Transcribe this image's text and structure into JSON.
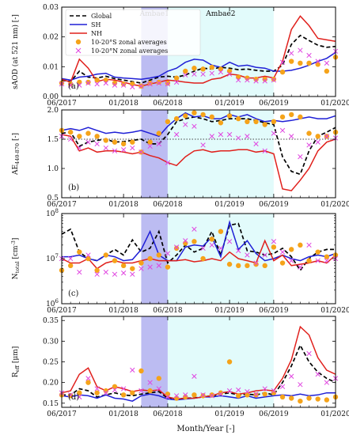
{
  "chart_data": {
    "type": "line",
    "xlabel": "Month/Year [-]",
    "x_tick_labels": [
      "06/2017",
      "01/2018",
      "06/2018",
      "01/2019",
      "06/2019",
      "01/2020"
    ],
    "months": [
      "2017-06",
      "2017-07",
      "2017-08",
      "2017-09",
      "2017-10",
      "2017-11",
      "2017-12",
      "2018-01",
      "2018-02",
      "2018-03",
      "2018-04",
      "2018-05",
      "2018-06",
      "2018-07",
      "2018-08",
      "2018-09",
      "2018-10",
      "2018-11",
      "2018-12",
      "2019-01",
      "2019-02",
      "2019-03",
      "2019-04",
      "2019-05",
      "2019-06",
      "2019-07",
      "2019-08",
      "2019-09",
      "2019-10",
      "2019-11",
      "2019-12",
      "2020-01"
    ],
    "shaded_periods": [
      {
        "label": "Ambae1",
        "start": "2018-03",
        "end": "2018-06",
        "color": "#bcbcf2"
      },
      {
        "label": "Ambae2",
        "start": "2018-06",
        "end": "2019-06",
        "color": "#e2fbfb"
      }
    ],
    "legend": [
      {
        "name": "Global",
        "style": "dashed",
        "color": "#000000"
      },
      {
        "name": "SH",
        "style": "line",
        "color": "#1f1fd6"
      },
      {
        "name": "NH",
        "style": "line",
        "color": "#e0201c"
      },
      {
        "name": "10-20°S zonal averages",
        "style": "circle",
        "color": "#f5a31a"
      },
      {
        "name": "10-20°N zonal averages",
        "style": "x",
        "color": "#e045e0"
      }
    ],
    "panels": [
      {
        "label": "(a)",
        "ylabel": "sAOD (at 521 nm) [-]",
        "ylim": [
          0,
          0.03
        ],
        "y_ticks": [
          "0.00",
          "0.01",
          "0.02",
          "0.03"
        ],
        "series": [
          {
            "name": "Global",
            "values": [
              0.0055,
              0.005,
              0.0085,
              0.0065,
              0.0062,
              0.0068,
              0.006,
              0.0055,
              0.005,
              0.0045,
              0.0055,
              0.0065,
              0.0068,
              0.0065,
              0.0072,
              0.0085,
              0.0095,
              0.0092,
              0.0098,
              0.0095,
              0.009,
              0.0092,
              0.0088,
              0.0085,
              0.0085,
              0.0105,
              0.0175,
              0.0205,
              0.0188,
              0.0172,
              0.0165,
              0.0168
            ]
          },
          {
            "name": "SH",
            "values": [
              0.006,
              0.0055,
              0.0065,
              0.0068,
              0.0075,
              0.0078,
              0.0065,
              0.0062,
              0.006,
              0.0058,
              0.0062,
              0.0068,
              0.0085,
              0.0095,
              0.0115,
              0.0125,
              0.0122,
              0.0105,
              0.0098,
              0.0115,
              0.0102,
              0.0105,
              0.0098,
              0.0095,
              0.0085,
              0.0085,
              0.0088,
              0.0095,
              0.0105,
              0.0118,
              0.0128,
              0.0148
            ]
          },
          {
            "name": "NH",
            "values": [
              0.0058,
              0.0048,
              0.0125,
              0.0095,
              0.005,
              0.0058,
              0.0055,
              0.0048,
              0.004,
              0.0035,
              0.0042,
              0.0048,
              0.0055,
              0.0052,
              0.0048,
              0.0045,
              0.0045,
              0.0058,
              0.0062,
              0.0075,
              0.0072,
              0.0062,
              0.0062,
              0.0068,
              0.0062,
              0.0118,
              0.0225,
              0.027,
              0.0238,
              0.0195,
              0.019,
              0.0185
            ]
          },
          {
            "name": "10-20°S zonal averages",
            "values": [
              0.0045,
              0.0042,
              0.0048,
              0.0048,
              0.0055,
              0.0055,
              0.0045,
              0.0042,
              0.0042,
              0.0035,
              0.0045,
              0.0048,
              0.0045,
              0.0062,
              0.0085,
              0.0095,
              0.0092,
              0.0098,
              0.0092,
              0.0085,
              0.0065,
              0.0062,
              0.0058,
              0.0058,
              0.0058,
              0.0082,
              0.0118,
              0.0112,
              0.0112,
              0.0108,
              0.0085,
              0.0132
            ]
          },
          {
            "name": "10-20°N zonal averages",
            "values": [
              0.0042,
              0.0038,
              0.0038,
              0.0045,
              0.0042,
              0.0045,
              0.0038,
              0.0038,
              0.0032,
              0.0035,
              0.0042,
              0.0045,
              0.0042,
              0.0048,
              0.0072,
              0.0075,
              0.0075,
              0.0078,
              0.0082,
              0.0075,
              0.0055,
              0.0055,
              0.0052,
              0.0052,
              0.0055,
              0.0115,
              0.0145,
              0.0155,
              0.0138,
              0.0118,
              0.0112,
              0.0152
            ]
          }
        ]
      },
      {
        "label": "(b)",
        "ylabel": "AE440-870 [-]",
        "ylim": [
          0.5,
          2.0
        ],
        "y_ticks": [
          "0.5",
          "1.0",
          "1.5",
          "2.0"
        ],
        "reference_line": 1.5,
        "series": [
          {
            "name": "Global",
            "values": [
              1.6,
              1.62,
              1.38,
              1.45,
              1.48,
              1.5,
              1.45,
              1.46,
              1.48,
              1.5,
              1.42,
              1.42,
              1.58,
              1.8,
              1.85,
              1.88,
              1.85,
              1.8,
              1.82,
              1.85,
              1.85,
              1.85,
              1.82,
              1.78,
              1.75,
              1.2,
              0.95,
              0.9,
              1.3,
              1.55,
              1.62,
              1.7
            ]
          },
          {
            "name": "SH",
            "values": [
              1.65,
              1.68,
              1.65,
              1.7,
              1.65,
              1.6,
              1.62,
              1.6,
              1.62,
              1.65,
              1.6,
              1.55,
              1.72,
              1.85,
              1.95,
              1.88,
              1.9,
              1.85,
              1.85,
              1.92,
              1.88,
              1.92,
              1.85,
              1.8,
              1.82,
              1.8,
              1.82,
              1.85,
              1.88,
              1.85,
              1.85,
              1.9
            ]
          },
          {
            "name": "NH",
            "values": [
              1.58,
              1.55,
              1.3,
              1.35,
              1.28,
              1.3,
              1.3,
              1.28,
              1.25,
              1.28,
              1.22,
              1.18,
              1.1,
              1.05,
              1.2,
              1.3,
              1.32,
              1.28,
              1.3,
              1.3,
              1.32,
              1.32,
              1.28,
              1.3,
              1.25,
              0.65,
              0.62,
              0.8,
              1.0,
              1.3,
              1.45,
              1.5
            ]
          },
          {
            "name": "10-20°S zonal averages",
            "values": [
              1.65,
              1.62,
              1.55,
              1.6,
              1.55,
              1.48,
              1.45,
              1.42,
              1.45,
              1.28,
              1.45,
              1.6,
              1.8,
              1.85,
              1.9,
              1.95,
              1.92,
              1.88,
              1.78,
              1.9,
              1.85,
              1.8,
              1.8,
              1.75,
              1.8,
              1.88,
              1.92,
              1.88,
              1.6,
              1.55,
              1.55,
              1.62
            ]
          },
          {
            "name": "10-20°N zonal averages",
            "values": [
              1.55,
              1.5,
              1.35,
              1.45,
              1.42,
              1.35,
              1.3,
              1.32,
              1.35,
              1.28,
              1.38,
              1.42,
              1.1,
              1.58,
              1.75,
              1.72,
              1.4,
              1.55,
              1.58,
              1.58,
              1.52,
              1.55,
              1.42,
              1.3,
              1.6,
              1.65,
              1.55,
              1.2,
              1.4,
              1.45,
              1.55,
              1.52
            ]
          }
        ]
      },
      {
        "label": "(c)",
        "ylabel": "Ntotal [cm-3]",
        "scale": "log",
        "ylim": [
          1000000,
          100000000
        ],
        "y_ticks": [
          "10^6",
          "10^7",
          "10^8"
        ],
        "series": [
          {
            "name": "Global",
            "values": [
              35000000,
              45000000,
              14000000,
              10000000,
              9000000,
              12000000,
              16000000,
              12000000,
              26000000,
              14000000,
              17000000,
              40000000,
              8000000,
              12000000,
              20000000,
              14000000,
              17000000,
              40000000,
              12000000,
              55000000,
              60000000,
              15000000,
              14000000,
              12000000,
              13000000,
              17000000,
              11000000,
              5500000,
              10000000,
              14000000,
              16000000,
              16000000
            ]
          },
          {
            "name": "SH",
            "values": [
              11000000,
              11000000,
              12000000,
              10000000,
              9000000,
              12000000,
              11000000,
              9000000,
              9500000,
              16000000,
              40000000,
              12000000,
              9000000,
              9000000,
              18000000,
              20000000,
              19000000,
              30000000,
              11000000,
              65000000,
              16000000,
              25000000,
              13000000,
              9000000,
              10000000,
              12000000,
              10000000,
              9000000,
              11000000,
              12000000,
              11000000,
              13000000
            ]
          },
          {
            "name": "NH",
            "values": [
              10000000,
              8000000,
              8000000,
              10000000,
              6000000,
              8000000,
              9000000,
              8000000,
              8000000,
              9000000,
              10000000,
              9000000,
              9000000,
              9000000,
              9500000,
              8500000,
              9000000,
              10000000,
              9000000,
              14000000,
              10000000,
              9000000,
              8000000,
              25000000,
              9000000,
              12000000,
              7000000,
              7500000,
              8000000,
              9000000,
              8000000,
              12000000
            ]
          },
          {
            "name": "10-20°S zonal averages",
            "values": [
              5500000,
              7000000,
              14000000,
              10000000,
              5500000,
              12000000,
              9000000,
              7000000,
              6000000,
              8000000,
              10000000,
              12000000,
              6500000,
              17000000,
              22000000,
              24000000,
              10000000,
              27000000,
              40000000,
              7500000,
              7000000,
              7000000,
              7500000,
              7000000,
              18000000,
              8000000,
              16000000,
              20000000,
              9000000,
              14000000,
              11000000,
              12000000
            ]
          },
          {
            "name": "10-20°N zonal averages",
            "values": [
              10000000,
              10000000,
              5000000,
              12000000,
              4500000,
              5000000,
              4500000,
              4800000,
              4500000,
              6000000,
              6500000,
              7000000,
              13000000,
              18000000,
              25000000,
              45000000,
              17000000,
              20000000,
              17000000,
              24000000,
              15000000,
              12000000,
              8000000,
              12000000,
              24000000,
              14000000,
              9000000,
              6500000,
              20000000,
              9000000,
              9000000,
              10000000
            ]
          }
        ]
      },
      {
        "label": "(d)",
        "ylabel": "Reff [μm]",
        "ylim": [
          0.14,
          0.36
        ],
        "y_ticks": [
          "0.15",
          "0.20",
          "0.25",
          "0.30",
          "0.35"
        ],
        "series": [
          {
            "name": "Global",
            "values": [
              0.17,
              0.17,
              0.185,
              0.18,
              0.165,
              0.17,
              0.175,
              0.17,
              0.168,
              0.172,
              0.175,
              0.178,
              0.162,
              0.16,
              0.162,
              0.163,
              0.165,
              0.168,
              0.172,
              0.175,
              0.17,
              0.172,
              0.17,
              0.175,
              0.17,
              0.2,
              0.24,
              0.29,
              0.25,
              0.225,
              0.21,
              0.2
            ]
          },
          {
            "name": "SH",
            "values": [
              0.168,
              0.165,
              0.17,
              0.168,
              0.162,
              0.17,
              0.162,
              0.16,
              0.155,
              0.168,
              0.172,
              0.168,
              0.16,
              0.158,
              0.16,
              0.162,
              0.165,
              0.165,
              0.168,
              0.165,
              0.162,
              0.168,
              0.162,
              0.165,
              0.168,
              0.17,
              0.168,
              0.172,
              0.168,
              0.17,
              0.175,
              0.175
            ]
          },
          {
            "name": "NH",
            "values": [
              0.175,
              0.18,
              0.22,
              0.235,
              0.19,
              0.18,
              0.19,
              0.185,
              0.178,
              0.182,
              0.18,
              0.182,
              0.165,
              0.16,
              0.162,
              0.162,
              0.165,
              0.168,
              0.175,
              0.178,
              0.172,
              0.175,
              0.18,
              0.182,
              0.18,
              0.21,
              0.255,
              0.335,
              0.315,
              0.26,
              0.23,
              0.22
            ]
          },
          {
            "name": "10-20°S zonal averages",
            "values": [
              0.17,
              0.168,
              0.175,
              0.2,
              0.175,
              0.18,
              0.19,
              0.17,
              0.175,
              0.228,
              0.18,
              0.21,
              0.172,
              0.162,
              0.165,
              0.17,
              0.168,
              0.17,
              0.175,
              0.25,
              0.168,
              0.17,
              0.17,
              0.172,
              0.175,
              0.165,
              0.162,
              0.155,
              0.162,
              0.16,
              0.158,
              0.165
            ]
          },
          {
            "name": "10-20°N zonal averages",
            "values": [
              0.175,
              0.17,
              0.165,
              0.21,
              0.185,
              0.175,
              0.182,
              0.185,
              0.23,
              0.18,
              0.2,
              0.185,
              0.165,
              0.168,
              0.17,
              0.215,
              0.17,
              0.168,
              0.172,
              0.18,
              0.182,
              0.178,
              0.172,
              0.185,
              0.18,
              0.19,
              0.215,
              0.195,
              0.27,
              0.22,
              0.2,
              0.21
            ]
          }
        ]
      }
    ]
  }
}
